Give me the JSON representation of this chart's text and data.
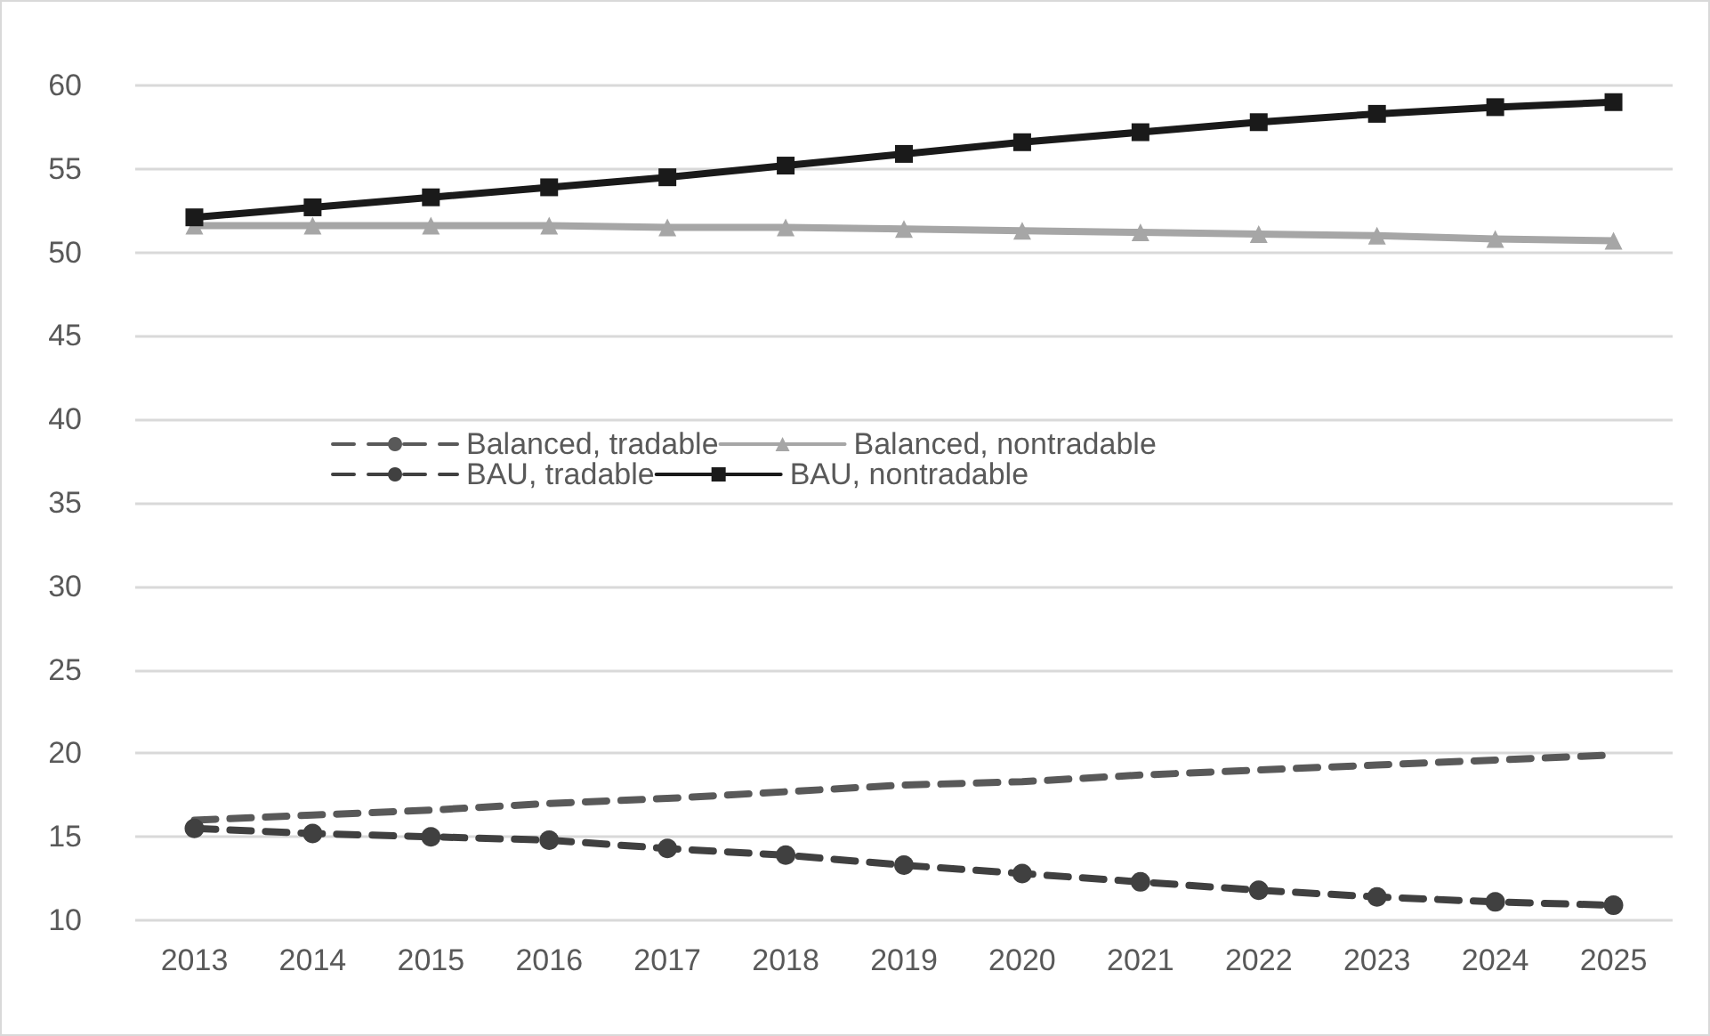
{
  "chart_data": {
    "type": "line",
    "categories": [
      "2013",
      "2014",
      "2015",
      "2016",
      "2017",
      "2018",
      "2019",
      "2020",
      "2021",
      "2022",
      "2023",
      "2024",
      "2025"
    ],
    "series": [
      {
        "name": "Balanced, tradable",
        "color": "#595959",
        "line_style": "dashed",
        "marker": "none",
        "values": [
          16.0,
          16.3,
          16.6,
          17.0,
          17.3,
          17.7,
          18.1,
          18.3,
          18.7,
          19.0,
          19.3,
          19.6,
          19.9
        ]
      },
      {
        "name": "Balanced, nontradable",
        "color": "#a6a6a6",
        "line_style": "solid",
        "marker": "triangle",
        "values": [
          51.6,
          51.6,
          51.6,
          51.6,
          51.5,
          51.5,
          51.4,
          51.3,
          51.2,
          51.1,
          51.0,
          50.8,
          50.7
        ]
      },
      {
        "name": "BAU, tradable",
        "color": "#404040",
        "line_style": "dashed",
        "marker": "circle",
        "values": [
          15.5,
          15.2,
          15.0,
          14.8,
          14.3,
          13.9,
          13.3,
          12.8,
          12.3,
          11.8,
          11.4,
          11.1,
          10.9
        ]
      },
      {
        "name": "BAU, nontradable",
        "color": "#1a1a1a",
        "line_style": "solid",
        "marker": "square",
        "values": [
          52.1,
          52.7,
          53.3,
          53.9,
          54.5,
          55.2,
          55.9,
          56.6,
          57.2,
          57.8,
          58.3,
          58.7,
          59.0
        ]
      }
    ],
    "ylim": [
      10,
      60
    ],
    "yticks": [
      10,
      15,
      20,
      25,
      30,
      35,
      40,
      45,
      50,
      55,
      60
    ],
    "grid": "y",
    "legend": "center"
  }
}
